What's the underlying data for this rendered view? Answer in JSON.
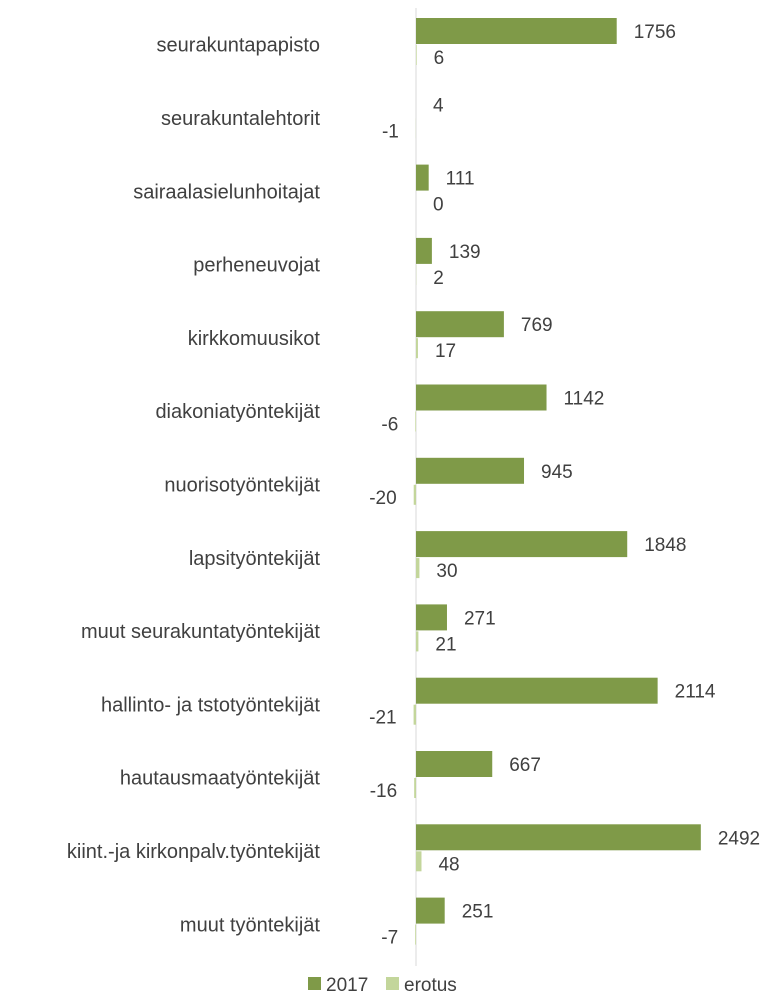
{
  "chart_data": {
    "type": "bar",
    "orientation": "horizontal",
    "categories": [
      "seurakuntapapisto",
      "seurakuntalehtorit",
      "sairaalasielunhoitajat",
      "perheneuvojat",
      "kirkkomuusikot",
      "diakoniatyöntekijät",
      "nuorisotyöntekijät",
      "lapsityöntekijät",
      "muut seurakuntatyöntekijät",
      "hallinto- ja tstotyöntekijät",
      "hautausmaatyöntekijät",
      "kiint.-ja kirkonpalv.työntekijät",
      "muut työntekijät"
    ],
    "series": [
      {
        "name": "2017",
        "color": "#7f9a48",
        "values": [
          1756,
          null,
          111,
          139,
          769,
          1142,
          945,
          1848,
          271,
          2114,
          667,
          2492,
          251
        ],
        "labels": [
          "1756",
          "4",
          "111",
          "139",
          "769",
          "1142",
          "945",
          "1848",
          "271",
          "2114",
          "667",
          "2492",
          "251"
        ]
      },
      {
        "name": "erotus",
        "color": "#c3d69b",
        "values": [
          6,
          -1,
          0,
          2,
          17,
          -6,
          -20,
          30,
          21,
          -21,
          -16,
          48,
          -7
        ],
        "labels": [
          "6",
          "-1",
          "0",
          "2",
          "17",
          "-6",
          "-20",
          "30",
          "21",
          "-21",
          "-16",
          "48",
          "-7"
        ]
      }
    ],
    "legend": {
      "position": "bottom",
      "entries": [
        "2017",
        "erotus"
      ]
    },
    "grid": false,
    "title": "",
    "xlabel": "",
    "ylabel": ""
  }
}
